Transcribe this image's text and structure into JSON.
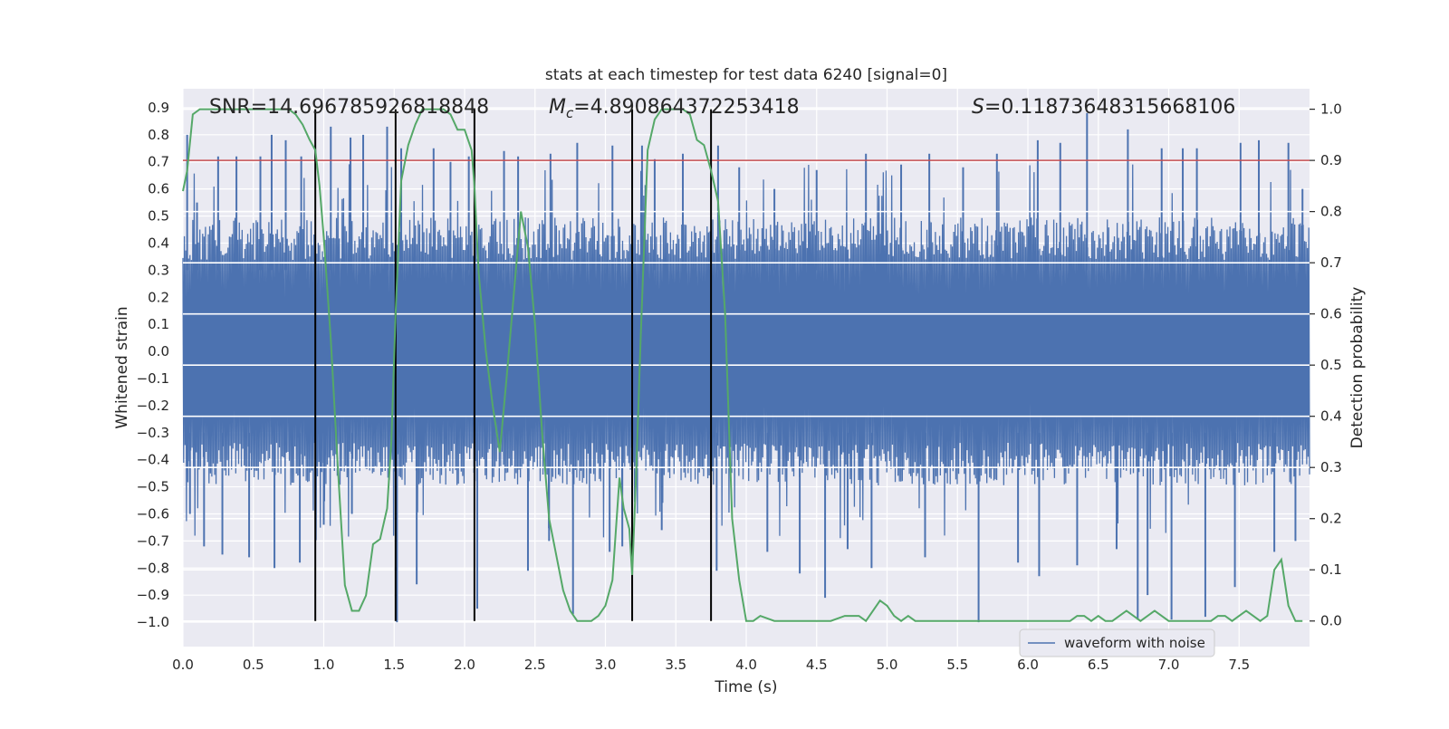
{
  "chart_data": {
    "type": "line",
    "title": "stats at each timestep for test data 6240 [signal=0]",
    "xlabel": "Time (s)",
    "ylabel_left": "Whitened strain",
    "ylabel_right": "Detection probability",
    "xlim": [
      0.0,
      8.0
    ],
    "ylim_left": [
      -1.09,
      0.97
    ],
    "ylim_right": [
      -0.05,
      1.04
    ],
    "x_ticks": [
      0.0,
      0.5,
      1.0,
      1.5,
      2.0,
      2.5,
      3.0,
      3.5,
      4.0,
      4.5,
      5.0,
      5.5,
      6.0,
      6.5,
      7.0,
      7.5
    ],
    "x_tick_labels": [
      "0.0",
      "0.5",
      "1.0",
      "1.5",
      "2.0",
      "2.5",
      "3.0",
      "3.5",
      "4.0",
      "4.5",
      "5.0",
      "5.5",
      "6.0",
      "6.5",
      "7.0",
      "7.5"
    ],
    "y_left_ticks": [
      -1.0,
      -0.9,
      -0.8,
      -0.7,
      -0.6,
      -0.5,
      -0.4,
      -0.3,
      -0.2,
      -0.1,
      0.0,
      0.1,
      0.2,
      0.3,
      0.4,
      0.5,
      0.6,
      0.7,
      0.8,
      0.9
    ],
    "y_left_tick_labels": [
      "−1.0",
      "−0.9",
      "−0.8",
      "−0.7",
      "−0.6",
      "−0.5",
      "−0.4",
      "−0.3",
      "−0.2",
      "−0.1",
      "0.0",
      "0.1",
      "0.2",
      "0.3",
      "0.4",
      "0.5",
      "0.6",
      "0.7",
      "0.8",
      "0.9"
    ],
    "y_right_ticks": [
      0.0,
      0.1,
      0.2,
      0.3,
      0.4,
      0.5,
      0.6,
      0.7,
      0.8,
      0.9,
      1.0
    ],
    "y_right_tick_labels": [
      "0.0",
      "0.1",
      "0.2",
      "0.3",
      "0.4",
      "0.5",
      "0.6",
      "0.7",
      "0.8",
      "0.9",
      "1.0"
    ],
    "grid": true,
    "legend": {
      "placement": "lower-right",
      "entries": [
        "waveform with noise"
      ]
    },
    "annotations": {
      "snr": "SNR=14.696785926818848",
      "mc_symbol": "M",
      "mc_subscript": "c",
      "mc_value": "=4.890864372253418",
      "s_symbol": "S",
      "s_value": "=0.11873648315668106"
    },
    "threshold_line": {
      "y_right": 0.9,
      "color": "#c44e52"
    },
    "detection_markers_x": [
      0.94,
      1.51,
      2.07,
      3.19,
      3.75
    ],
    "waveform": {
      "name": "waveform with noise",
      "color": "#4c72b0",
      "x_range": [
        0.0,
        8.0
      ],
      "typical_range": [
        -0.45,
        0.45
      ],
      "peaks_up": [
        [
          0.03,
          0.8
        ],
        [
          0.1,
          0.55
        ],
        [
          0.25,
          0.72
        ],
        [
          0.38,
          0.72
        ],
        [
          0.55,
          0.72
        ],
        [
          0.63,
          0.8
        ],
        [
          0.73,
          0.78
        ],
        [
          0.84,
          0.72
        ],
        [
          1.05,
          0.83
        ],
        [
          1.19,
          0.79
        ],
        [
          1.28,
          0.8
        ],
        [
          1.45,
          0.83
        ],
        [
          1.55,
          0.75
        ],
        [
          1.78,
          0.75
        ],
        [
          1.9,
          0.7
        ],
        [
          2.03,
          0.72
        ],
        [
          2.28,
          0.74
        ],
        [
          2.38,
          0.72
        ],
        [
          2.61,
          0.73
        ],
        [
          2.8,
          0.77
        ],
        [
          3.05,
          0.76
        ],
        [
          3.26,
          0.76
        ],
        [
          3.35,
          0.71
        ],
        [
          3.55,
          0.73
        ],
        [
          3.8,
          0.76
        ],
        [
          3.95,
          0.68
        ],
        [
          4.2,
          0.6
        ],
        [
          4.5,
          0.67
        ],
        [
          4.85,
          0.73
        ],
        [
          5.1,
          0.69
        ],
        [
          5.3,
          0.73
        ],
        [
          5.54,
          0.68
        ],
        [
          5.78,
          0.73
        ],
        [
          6.07,
          0.78
        ],
        [
          6.23,
          0.77
        ],
        [
          6.42,
          0.88
        ],
        [
          6.71,
          0.82
        ],
        [
          6.95,
          0.75
        ],
        [
          7.1,
          0.75
        ],
        [
          7.2,
          0.75
        ],
        [
          7.51,
          0.77
        ],
        [
          7.64,
          0.78
        ],
        [
          7.85,
          0.77
        ],
        [
          7.95,
          0.6
        ]
      ],
      "peaks_down": [
        [
          0.05,
          -0.6
        ],
        [
          0.15,
          -0.72
        ],
        [
          0.28,
          -0.75
        ],
        [
          0.47,
          -0.76
        ],
        [
          0.65,
          -0.8
        ],
        [
          0.83,
          -0.78
        ],
        [
          1.0,
          -0.64
        ],
        [
          1.2,
          -0.6
        ],
        [
          1.52,
          -1.0
        ],
        [
          1.66,
          -0.86
        ],
        [
          2.09,
          -0.95
        ],
        [
          2.45,
          -0.81
        ],
        [
          2.6,
          -0.7
        ],
        [
          2.77,
          -0.97
        ],
        [
          3.03,
          -0.74
        ],
        [
          3.12,
          -0.72
        ],
        [
          3.4,
          -0.66
        ],
        [
          3.79,
          -0.81
        ],
        [
          4.15,
          -0.74
        ],
        [
          4.38,
          -0.82
        ],
        [
          4.56,
          -0.91
        ],
        [
          4.72,
          -0.73
        ],
        [
          4.89,
          -0.8
        ],
        [
          5.27,
          -0.76
        ],
        [
          5.65,
          -1.0
        ],
        [
          5.93,
          -0.78
        ],
        [
          6.08,
          -0.83
        ],
        [
          6.35,
          -0.79
        ],
        [
          6.63,
          -0.73
        ],
        [
          6.78,
          -0.99
        ],
        [
          6.85,
          -0.9
        ],
        [
          7.02,
          -0.99
        ],
        [
          7.26,
          -0.98
        ],
        [
          7.47,
          -0.87
        ],
        [
          7.75,
          -0.74
        ],
        [
          7.9,
          -0.7
        ]
      ]
    },
    "series": [
      {
        "name": "detection probability",
        "color": "#55a868",
        "axis": "right",
        "x": [
          0.0,
          0.03,
          0.07,
          0.12,
          0.2,
          0.3,
          0.4,
          0.5,
          0.6,
          0.7,
          0.75,
          0.8,
          0.85,
          0.9,
          0.94,
          0.97,
          1.0,
          1.05,
          1.1,
          1.15,
          1.2,
          1.25,
          1.3,
          1.35,
          1.4,
          1.45,
          1.48,
          1.51,
          1.55,
          1.6,
          1.65,
          1.7,
          1.75,
          1.8,
          1.85,
          1.9,
          1.95,
          2.0,
          2.05,
          2.07,
          2.1,
          2.15,
          2.2,
          2.25,
          2.3,
          2.35,
          2.4,
          2.45,
          2.5,
          2.55,
          2.6,
          2.65,
          2.7,
          2.75,
          2.8,
          2.85,
          2.9,
          2.95,
          3.0,
          3.05,
          3.1,
          3.13,
          3.17,
          3.19,
          3.22,
          3.25,
          3.3,
          3.35,
          3.4,
          3.45,
          3.5,
          3.55,
          3.6,
          3.65,
          3.7,
          3.75,
          3.8,
          3.85,
          3.9,
          3.95,
          4.0,
          4.05,
          4.1,
          4.2,
          4.3,
          4.4,
          4.5,
          4.6,
          4.7,
          4.8,
          4.85,
          4.9,
          4.95,
          5.0,
          5.05,
          5.1,
          5.15,
          5.2,
          5.3,
          5.4,
          5.5,
          5.6,
          5.7,
          5.8,
          5.9,
          6.0,
          6.1,
          6.2,
          6.3,
          6.35,
          6.4,
          6.45,
          6.5,
          6.55,
          6.6,
          6.65,
          6.7,
          6.75,
          6.8,
          6.9,
          7.0,
          7.1,
          7.2,
          7.3,
          7.35,
          7.4,
          7.45,
          7.5,
          7.55,
          7.6,
          7.65,
          7.7,
          7.75,
          7.8,
          7.85,
          7.9,
          7.95
        ],
        "values": [
          0.84,
          0.88,
          0.99,
          1.0,
          1.0,
          1.0,
          1.0,
          1.0,
          1.0,
          1.0,
          1.0,
          0.99,
          0.97,
          0.94,
          0.92,
          0.85,
          0.75,
          0.55,
          0.3,
          0.07,
          0.02,
          0.02,
          0.05,
          0.15,
          0.16,
          0.22,
          0.35,
          0.6,
          0.86,
          0.93,
          0.97,
          1.0,
          1.0,
          1.0,
          1.0,
          0.99,
          0.96,
          0.96,
          0.92,
          0.85,
          0.68,
          0.53,
          0.42,
          0.33,
          0.48,
          0.64,
          0.8,
          0.73,
          0.58,
          0.37,
          0.2,
          0.13,
          0.06,
          0.02,
          0.0,
          0.0,
          0.0,
          0.01,
          0.03,
          0.08,
          0.28,
          0.22,
          0.18,
          0.09,
          0.3,
          0.55,
          0.92,
          0.98,
          1.0,
          1.0,
          1.0,
          1.0,
          0.99,
          0.94,
          0.93,
          0.88,
          0.82,
          0.6,
          0.2,
          0.08,
          0.0,
          0.0,
          0.01,
          0.0,
          0.0,
          0.0,
          0.0,
          0.0,
          0.01,
          0.01,
          0.0,
          0.02,
          0.04,
          0.03,
          0.01,
          0.0,
          0.01,
          0.0,
          0.0,
          0.0,
          0.0,
          0.0,
          0.0,
          0.0,
          0.0,
          0.0,
          0.0,
          0.0,
          0.0,
          0.01,
          0.01,
          0.0,
          0.01,
          0.0,
          0.0,
          0.01,
          0.02,
          0.01,
          0.0,
          0.02,
          0.0,
          0.0,
          0.0,
          0.0,
          0.01,
          0.01,
          0.0,
          0.01,
          0.02,
          0.01,
          0.0,
          0.01,
          0.1,
          0.12,
          0.03,
          0.0,
          0.0
        ]
      }
    ]
  }
}
